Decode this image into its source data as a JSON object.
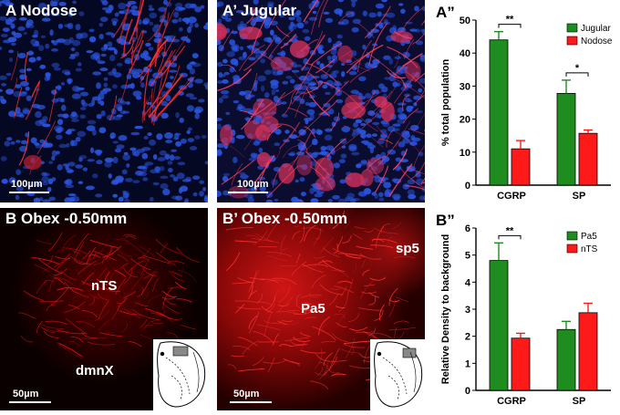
{
  "panels": {
    "a": {
      "label": "A  Nodose",
      "scale": "100µm"
    },
    "a2": {
      "label": "A’ Jugular",
      "scale": "100µm"
    },
    "b": {
      "label": "B  Obex -0.50mm",
      "scale": "50µm",
      "regions": {
        "nts": "nTS",
        "dmnx": "dmnX"
      }
    },
    "b2": {
      "label": "B’  Obex -0.50mm",
      "scale": "50µm",
      "regions": {
        "pa5": "Pa5",
        "sp5": "sp5"
      }
    }
  },
  "colors": {
    "green": "#1e8c1e",
    "red": "#ff1a1a",
    "nuclei": "#2a55e0"
  },
  "chart_data": [
    {
      "type": "bar",
      "panel_letter": "A”",
      "categories": [
        "CGRP",
        "SP"
      ],
      "series": [
        {
          "name": "Jugular",
          "color": "#1e8c1e",
          "values": [
            44,
            27.8
          ],
          "errors": [
            2.5,
            4
          ]
        },
        {
          "name": "Nodose",
          "color": "#ff1a1a",
          "values": [
            11,
            15.7
          ],
          "errors": [
            2.5,
            1
          ]
        }
      ],
      "ylabel": "% total population",
      "ylim": [
        0,
        50
      ],
      "yticks": [
        0,
        10,
        20,
        30,
        40,
        50
      ],
      "significance": [
        {
          "category": 0,
          "label": "**"
        },
        {
          "category": 1,
          "label": "*"
        }
      ],
      "legend": "top-right"
    },
    {
      "type": "bar",
      "panel_letter": "B”",
      "categories": [
        "CGRP",
        "SP"
      ],
      "series": [
        {
          "name": "Pa5",
          "color": "#1e8c1e",
          "values": [
            4.8,
            2.25
          ],
          "errors": [
            0.65,
            0.3
          ]
        },
        {
          "name": "nTS",
          "color": "#ff1a1a",
          "values": [
            1.93,
            2.87
          ],
          "errors": [
            0.18,
            0.35
          ]
        }
      ],
      "ylabel": "Relative Density to background",
      "ylim": [
        0,
        6
      ],
      "yticks": [
        0,
        1,
        2,
        3,
        4,
        5,
        6
      ],
      "significance": [
        {
          "category": 0,
          "label": "**"
        }
      ],
      "legend": "top-right"
    }
  ]
}
